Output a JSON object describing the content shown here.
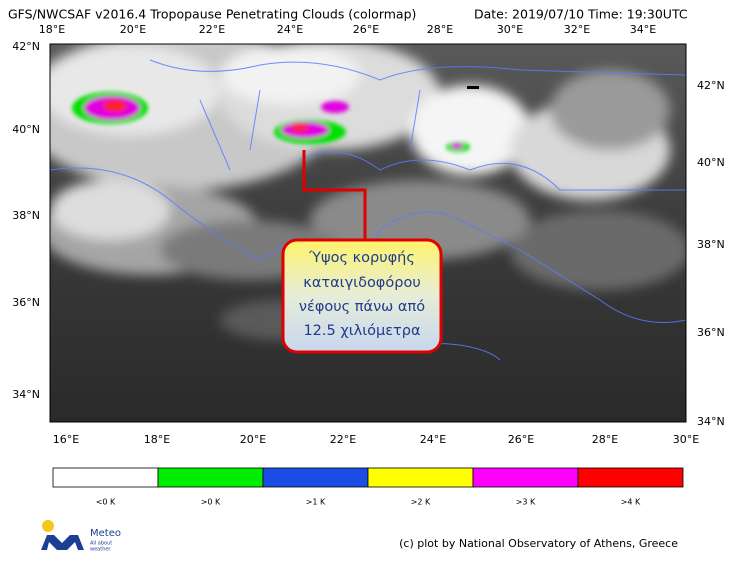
{
  "header": {
    "title": "GFS/NWCSAF v2016.4 Tropopause Penetrating Clouds (colormap)",
    "date": "Date: 2019/07/10",
    "time": "Time: 19:30UTC"
  },
  "map": {
    "top_labels": [
      "18°E",
      "20°E",
      "22°E",
      "24°E",
      "26°E",
      "28°E",
      "30°E",
      "32°E",
      "34°E"
    ],
    "bottom_labels": [
      "16°E",
      "18°E",
      "20°E",
      "22°E",
      "24°E",
      "26°E",
      "28°E",
      "30°E"
    ],
    "left_labels": [
      "42°N",
      "40°N",
      "38°N",
      "36°N",
      "34°N"
    ],
    "right_labels": [
      "42°N",
      "40°N",
      "38°N",
      "36°N",
      "34°N"
    ],
    "callout": [
      "Ύψος κορυφής",
      "καταιγιδοφόρου",
      "νέφους πάνω από",
      "12.5 χιλιόμετρα"
    ]
  },
  "colorbar": {
    "labels": [
      "<0 K",
      ">0 K",
      ">1 K",
      ">2 K",
      ">3 K",
      ">4 K"
    ]
  },
  "logo": {
    "name": "Meteo",
    "tagline_1": "All about",
    "tagline_2": "weather"
  },
  "credit": "(c) plot by National Observatory of Athens, Greece"
}
